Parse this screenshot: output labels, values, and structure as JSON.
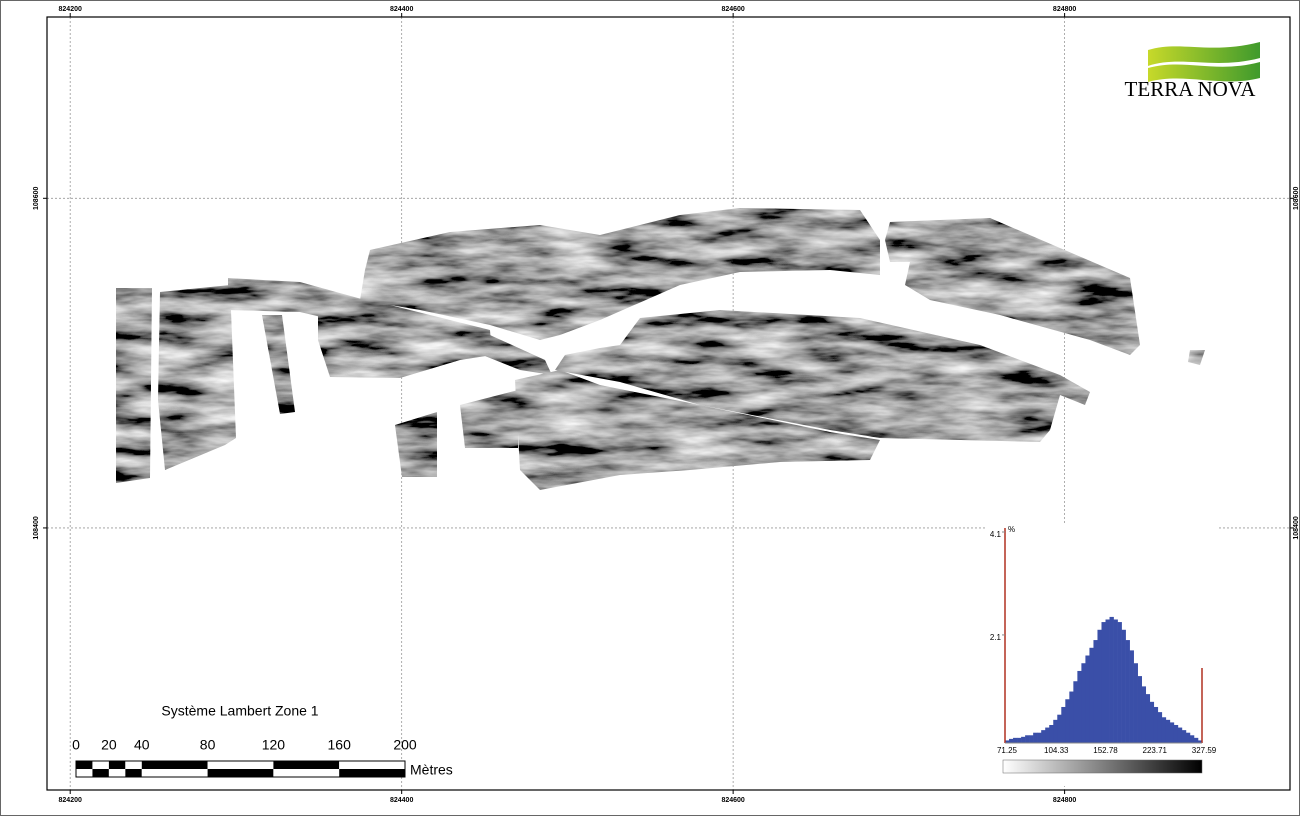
{
  "map": {
    "xlim": [
      824186,
      824936
    ],
    "ylim": [
      108241,
      108710
    ],
    "xticks": [
      824200,
      824400,
      824600,
      824800
    ],
    "yticks": [
      108400,
      108600
    ],
    "grid": true
  },
  "logo": {
    "text": "TERRA NOVA"
  },
  "projection": "Système Lambert Zone 1",
  "scale_bar": {
    "ticks": [
      0,
      20,
      40,
      80,
      120,
      160,
      200
    ],
    "unit": "Mètres"
  },
  "chart_data": {
    "type": "bar",
    "ylabel": "%",
    "color": "#3a4fa8",
    "values": [
      0.05,
      0.08,
      0.1,
      0.1,
      0.12,
      0.15,
      0.15,
      0.2,
      0.2,
      0.25,
      0.3,
      0.35,
      0.45,
      0.55,
      0.7,
      0.85,
      1.0,
      1.2,
      1.4,
      1.55,
      1.7,
      1.85,
      2.0,
      2.2,
      2.35,
      2.4,
      2.45,
      2.4,
      2.35,
      2.2,
      2.0,
      1.8,
      1.55,
      1.3,
      1.1,
      0.95,
      0.8,
      0.7,
      0.6,
      0.5,
      0.45,
      0.4,
      0.35,
      0.3,
      0.25,
      0.2,
      0.15,
      0.1,
      0.05
    ],
    "xticks": [
      71.25,
      104.33,
      152.78,
      223.71,
      327.59
    ],
    "ylim": [
      0,
      4.1
    ],
    "yticks": [
      2.1,
      4.1
    ]
  }
}
